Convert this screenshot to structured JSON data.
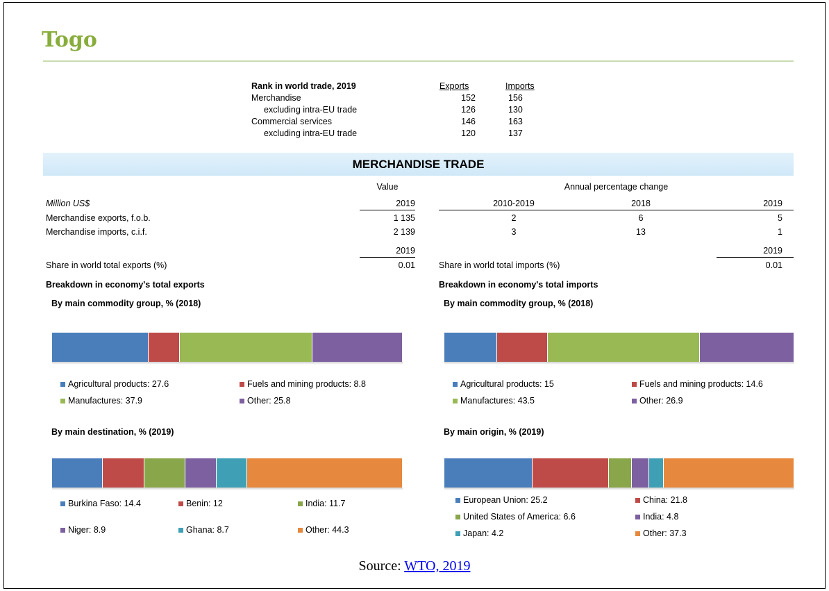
{
  "header": {
    "title": "Togo"
  },
  "rank_table": {
    "title": "Rank in world trade, 2019",
    "columns": [
      "Exports",
      "Imports"
    ],
    "rows": [
      {
        "label": "Merchandise",
        "values": [
          152,
          156
        ]
      },
      {
        "label": "excluding intra-EU trade",
        "values": [
          126,
          130
        ]
      },
      {
        "label": "Commercial services",
        "values": [
          146,
          163
        ]
      },
      {
        "label": "excluding intra-EU trade",
        "values": [
          120,
          137
        ]
      }
    ]
  },
  "section_title": "MERCHANDISE TRADE",
  "trade_table": {
    "value_header": "Value",
    "change_header": "Annual percentage change",
    "unit": "Million US$",
    "columns": [
      "2019",
      "2010-2019",
      "2018",
      "2019"
    ],
    "rows": [
      {
        "label": "Merchandise exports, f.o.b.",
        "values": [
          "1 135",
          2,
          6,
          5
        ]
      },
      {
        "label": "Merchandise imports, c.i.f.",
        "values": [
          "2 139",
          3,
          13,
          1
        ]
      }
    ],
    "share": {
      "year_exports": "2019",
      "year_imports": "2019",
      "exports_label": "Share in world total exports (%)",
      "exports_value": 0.01,
      "imports_label": "Share in world total imports (%)",
      "imports_value": 0.01
    }
  },
  "breakdown": {
    "exports": {
      "title": "Breakdown in economy's total exports",
      "groups": [
        {
          "title": "By main commodity group, % (2018)",
          "items": [
            {
              "label": "Agricultural products: 27.6",
              "value": 27.6,
              "color": "#4a7ebb"
            },
            {
              "label": "Fuels and mining products: 8.8",
              "value": 8.8,
              "color": "#be4b48"
            },
            {
              "label": "Manufactures: 37.9",
              "value": 37.9,
              "color": "#98b954"
            },
            {
              "label": "Other: 25.8",
              "value": 25.8,
              "color": "#7d60a0"
            }
          ]
        },
        {
          "title": "By main destination, % (2019)",
          "items": [
            {
              "label": "Burkina Faso: 14.4",
              "value": 14.4,
              "color": "#4a7ebb"
            },
            {
              "label": "Benin: 12",
              "value": 12,
              "color": "#be4b48"
            },
            {
              "label": "India: 11.7",
              "value": 11.7,
              "color": "#8aa64a"
            },
            {
              "label": "Niger: 8.9",
              "value": 8.9,
              "color": "#7d60a0"
            },
            {
              "label": "Ghana: 8.7",
              "value": 8.7,
              "color": "#3fa0b5"
            },
            {
              "label": "Other: 44.3",
              "value": 44.3,
              "color": "#e6883d"
            }
          ]
        }
      ]
    },
    "imports": {
      "title": "Breakdown in economy's total imports",
      "groups": [
        {
          "title": "By main commodity group, % (2018)",
          "items": [
            {
              "label": "Agricultural products: 15",
              "value": 15,
              "color": "#4a7ebb"
            },
            {
              "label": "Fuels and mining products: 14.6",
              "value": 14.6,
              "color": "#be4b48"
            },
            {
              "label": "Manufactures: 43.5",
              "value": 43.5,
              "color": "#98b954"
            },
            {
              "label": "Other: 26.9",
              "value": 26.9,
              "color": "#7d60a0"
            }
          ]
        },
        {
          "title": "By main origin, % (2019)",
          "items": [
            {
              "label": "European Union: 25.2",
              "value": 25.2,
              "color": "#4a7ebb"
            },
            {
              "label": "China: 21.8",
              "value": 21.8,
              "color": "#be4b48"
            },
            {
              "label": "United States of America: 6.6",
              "value": 6.6,
              "color": "#8aa64a"
            },
            {
              "label": "India: 4.8",
              "value": 4.8,
              "color": "#7d60a0"
            },
            {
              "label": "Japan: 4.2",
              "value": 4.2,
              "color": "#3fa0b5"
            },
            {
              "label": "Other: 37.3",
              "value": 37.3,
              "color": "#e6883d"
            }
          ]
        }
      ]
    }
  },
  "source": {
    "prefix": "Source:",
    "link": "WTO, 2019"
  }
}
